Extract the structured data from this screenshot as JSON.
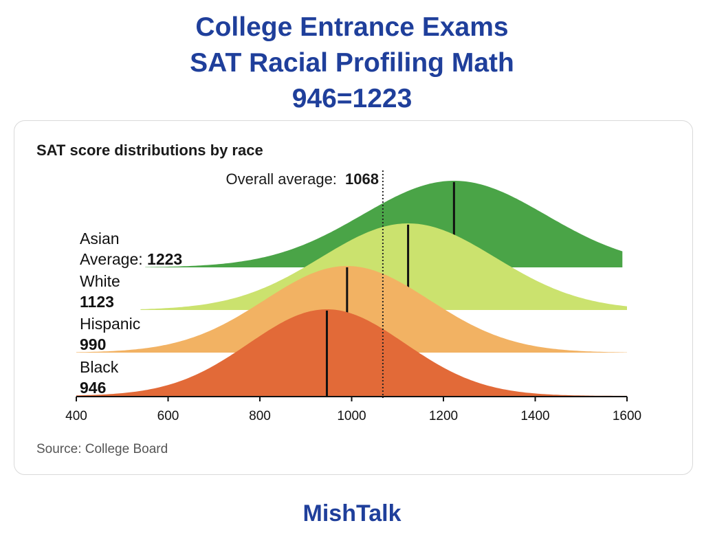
{
  "header": {
    "line1": "College Entrance Exams",
    "line2": "SAT Racial Profiling Math",
    "line3": "946=1223"
  },
  "footer": {
    "brand": "MishTalk"
  },
  "chart_data": {
    "type": "area",
    "title": "SAT score distributions by race",
    "xlabel": "",
    "ylabel": "",
    "xlim": [
      400,
      1600
    ],
    "xticks": [
      400,
      600,
      800,
      1000,
      1200,
      1400,
      1600
    ],
    "grid": false,
    "overall_average": {
      "label": "Overall average:",
      "value": 1068,
      "value_text": "1068"
    },
    "series": [
      {
        "name": "Asian",
        "average_label": "Average:",
        "average": 1223,
        "average_text": "1223",
        "color": "#4aa447",
        "std": 200,
        "range": [
          550,
          1590
        ]
      },
      {
        "name": "White",
        "average_label": "",
        "average": 1123,
        "average_text": "1123",
        "color": "#cbe26e",
        "std": 190,
        "range": [
          540,
          1600
        ]
      },
      {
        "name": "Hispanic",
        "average_label": "",
        "average": 990,
        "average_text": "990",
        "color": "#f2b263",
        "std": 180,
        "range": [
          400,
          1600
        ]
      },
      {
        "name": "Black",
        "average_label": "",
        "average": 946,
        "average_text": "946",
        "color": "#e26a38",
        "std": 170,
        "range": [
          400,
          1600
        ]
      }
    ],
    "source": "Source: College Board"
  }
}
